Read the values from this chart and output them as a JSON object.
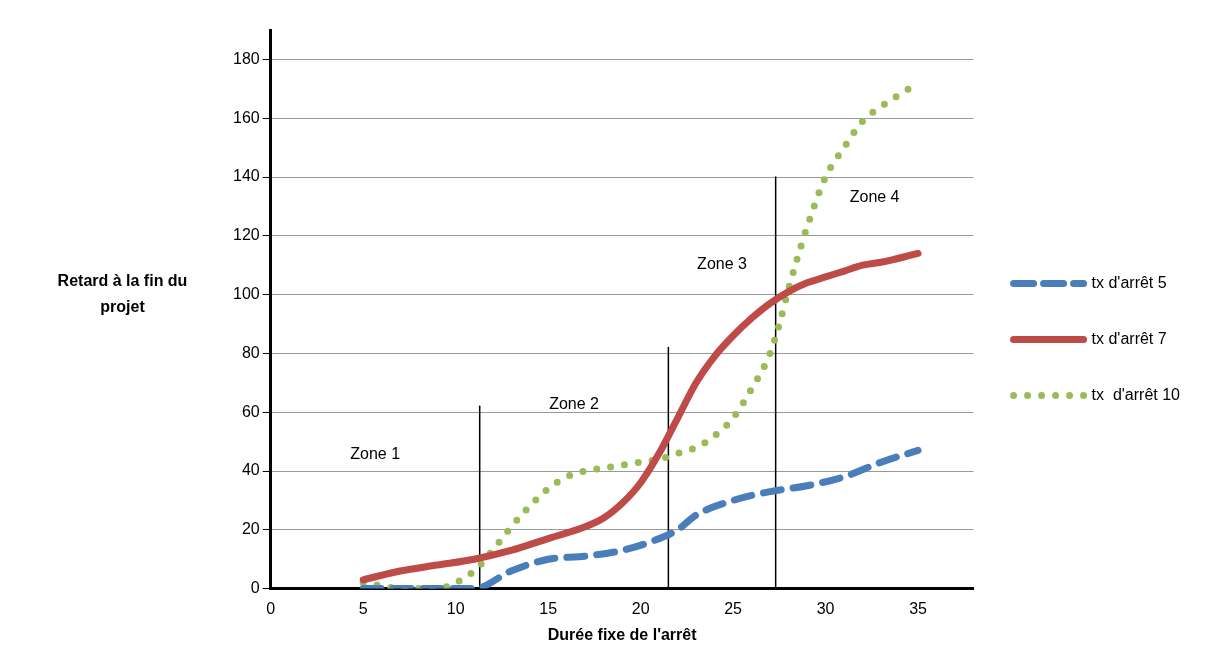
{
  "chart_data": {
    "type": "line",
    "xlabel": "Durée fixe de l'arrêt",
    "ylabel": "Retard à la fin du projet",
    "xlim": [
      0,
      38
    ],
    "ylim": [
      0,
      190
    ],
    "xticks": [
      0,
      5,
      10,
      15,
      20,
      25,
      30,
      35
    ],
    "yticks": [
      0,
      20,
      40,
      60,
      80,
      100,
      120,
      140,
      160,
      180
    ],
    "grid": "y",
    "legend": "right",
    "series": [
      {
        "name": "tx d'arrêt 5",
        "color": "#4a7ebb",
        "line_style": "dashed",
        "x": [
          5,
          11,
          13,
          15,
          17,
          19,
          21,
          22,
          23,
          25,
          27,
          29,
          31,
          33,
          35
        ],
        "values": [
          0,
          0,
          6,
          10,
          11,
          13,
          17,
          20,
          25,
          30,
          33,
          35,
          38,
          43,
          47
        ]
      },
      {
        "name": "tx d'arrêt 7",
        "color": "#be4b48",
        "line_style": "solid",
        "x": [
          5,
          7,
          9,
          11,
          13,
          15,
          17,
          18,
          19,
          20,
          21,
          22,
          23,
          24,
          25,
          26,
          27,
          28,
          29,
          30,
          31,
          32,
          33,
          35
        ],
        "values": [
          3,
          6,
          8,
          10,
          13,
          17,
          21,
          24,
          29,
          36,
          46,
          58,
          70,
          79,
          86,
          92,
          97,
          101,
          104,
          106,
          108,
          110,
          111,
          114
        ]
      },
      {
        "name": "tx  d'arrêt 10",
        "color": "#9bbb59",
        "line_style": "dotted",
        "x": [
          5,
          6,
          7,
          8,
          9,
          10,
          11,
          12,
          13,
          14,
          15,
          16,
          17,
          18,
          19,
          20,
          21,
          22,
          23,
          24,
          25,
          26,
          27,
          27.5,
          28,
          29,
          30,
          31,
          32,
          33,
          34.5
        ],
        "values": [
          2,
          1,
          0,
          0,
          0,
          2,
          6,
          13,
          21,
          28,
          34,
          38,
          40,
          41,
          42,
          43,
          44,
          46,
          48,
          52,
          58,
          68,
          80,
          90,
          102,
          123,
          140,
          150,
          159,
          164,
          170
        ]
      },
      {
        "color": "#000000",
        "line_style": "solid",
        "x": [
          11.3,
          11.3
        ],
        "values": [
          0,
          62
        ]
      },
      {
        "color": "#000000",
        "line_style": "solid",
        "x": [
          21.5,
          21.5
        ],
        "values": [
          0,
          82
        ]
      },
      {
        "color": "#000000",
        "line_style": "solid",
        "x": [
          27.3,
          27.3
        ],
        "values": [
          0,
          140
        ]
      }
    ],
    "annotations": [
      "Zone 1",
      "Zone 2",
      "Zone 3",
      "Zone 4"
    ]
  }
}
